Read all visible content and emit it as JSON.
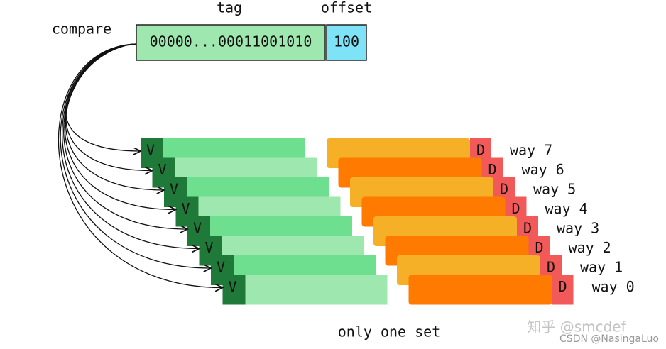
{
  "header": {
    "tag_label": "tag",
    "offset_label": "offset",
    "compare_label": "compare",
    "tag_value": "00000...00011001010",
    "offset_value": "100"
  },
  "ways": [
    {
      "valid": "V",
      "dirty": "D",
      "label": "way 7"
    },
    {
      "valid": "V",
      "dirty": "D",
      "label": "way 6"
    },
    {
      "valid": "V",
      "dirty": "D",
      "label": "way 5"
    },
    {
      "valid": "V",
      "dirty": "D",
      "label": "way 4"
    },
    {
      "valid": "V",
      "dirty": "D",
      "label": "way 3"
    },
    {
      "valid": "V",
      "dirty": "D",
      "label": "way 2"
    },
    {
      "valid": "V",
      "dirty": "D",
      "label": "way 1"
    },
    {
      "valid": "V",
      "dirty": "D",
      "label": "way 0"
    }
  ],
  "caption": "only one set",
  "watermark": {
    "zhihu": "知乎 @smcdef",
    "csdn": "CSDN @NasingaLuo"
  }
}
